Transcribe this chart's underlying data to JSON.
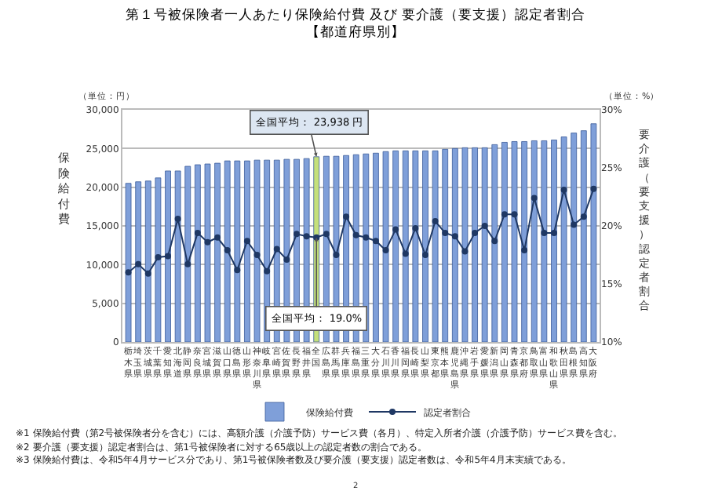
{
  "chart_data": {
    "type": "bar",
    "title": "第１号被保険者一人あたり保険給付費 及び 要介護（要支援）認定者割合",
    "subtitle": "【都道府県別】",
    "ylabel": "保険給付費",
    "y2label": "要介護（要支援）認定者割合",
    "categories": [
      "栃木県",
      "埼玉県",
      "茨城県",
      "千葉県",
      "愛知県",
      "北海道",
      "静岡県",
      "奈良県",
      "宮城県",
      "滋賀県",
      "山口県",
      "徳島県",
      "山形県",
      "神奈川県",
      "岐阜県",
      "宮崎県",
      "佐賀県",
      "長野県",
      "福井県",
      "全国",
      "広島県",
      "群馬県",
      "兵庫県",
      "福島県",
      "三重県",
      "大分県",
      "石川県",
      "香川県",
      "福岡県",
      "長崎県",
      "山梨県",
      "東京都",
      "熊本県",
      "鹿児島県",
      "沖縄県",
      "岩手県",
      "愛媛県",
      "新潟県",
      "岡山県",
      "青森県",
      "京都府",
      "鳥取県",
      "富山県",
      "和歌山県",
      "秋田県",
      "島根県",
      "高知県",
      "大阪府"
    ],
    "series": [
      {
        "name": "保険給付費",
        "colors": [
          "#7f9fd9",
          "#7f9fd9",
          "#7f9fd9",
          "#7f9fd9",
          "#7f9fd9",
          "#7f9fd9",
          "#7f9fd9",
          "#7f9fd9",
          "#7f9fd9",
          "#7f9fd9",
          "#7f9fd9",
          "#7f9fd9",
          "#7f9fd9",
          "#7f9fd9",
          "#7f9fd9",
          "#7f9fd9",
          "#7f9fd9",
          "#7f9fd9",
          "#7f9fd9",
          "#c5e07a",
          "#7f9fd9",
          "#7f9fd9",
          "#7f9fd9",
          "#7f9fd9",
          "#7f9fd9",
          "#7f9fd9",
          "#7f9fd9",
          "#7f9fd9",
          "#7f9fd9",
          "#7f9fd9",
          "#7f9fd9",
          "#7f9fd9",
          "#7f9fd9",
          "#7f9fd9",
          "#7f9fd9",
          "#7f9fd9",
          "#7f9fd9",
          "#7f9fd9",
          "#7f9fd9",
          "#7f9fd9",
          "#7f9fd9",
          "#7f9fd9",
          "#7f9fd9",
          "#7f9fd9",
          "#7f9fd9",
          "#7f9fd9",
          "#7f9fd9",
          "#7f9fd9"
        ],
        "values": [
          20500,
          20700,
          20800,
          21200,
          22100,
          22100,
          22700,
          22900,
          23000,
          23100,
          23400,
          23400,
          23400,
          23500,
          23500,
          23500,
          23600,
          23600,
          23700,
          23938,
          24000,
          24000,
          24100,
          24200,
          24300,
          24400,
          24600,
          24700,
          24700,
          24700,
          24700,
          24700,
          24900,
          25000,
          25100,
          25100,
          25100,
          25500,
          25800,
          25900,
          25900,
          26000,
          26000,
          26100,
          26500,
          27000,
          27300,
          28200
        ]
      },
      {
        "name": "認定者割合",
        "type": "line",
        "axis": "y2",
        "color": "#1f3864",
        "values": [
          16.0,
          16.7,
          15.9,
          17.3,
          17.4,
          20.6,
          16.7,
          19.4,
          18.6,
          19.0,
          17.9,
          16.2,
          18.7,
          17.5,
          16.1,
          18.0,
          17.1,
          19.3,
          19.1,
          19.0,
          19.3,
          17.5,
          20.8,
          19.2,
          19.0,
          18.7,
          17.9,
          19.7,
          17.6,
          19.8,
          17.5,
          20.4,
          19.4,
          19.1,
          17.8,
          19.4,
          20.0,
          18.7,
          21.0,
          21.0,
          17.9,
          22.4,
          19.4,
          19.4,
          23.1,
          20.1,
          20.8,
          23.2
        ]
      }
    ],
    "ylim": [
      0,
      30000
    ],
    "yticks": [
      {
        "value": 0,
        "label": "0"
      },
      {
        "value": 5000,
        "label": "5,000"
      },
      {
        "value": 10000,
        "label": "10,000"
      },
      {
        "value": 15000,
        "label": "15,000"
      },
      {
        "value": 20000,
        "label": "20,000"
      },
      {
        "value": 25000,
        "label": "25,000"
      },
      {
        "value": 30000,
        "label": "30,000"
      }
    ],
    "y2lim": [
      10,
      30
    ],
    "y2ticks": [
      {
        "value": 10,
        "label": "10%"
      },
      {
        "value": 15,
        "label": "15%"
      },
      {
        "value": 20,
        "label": "20%"
      },
      {
        "value": 25,
        "label": "25%"
      },
      {
        "value": 30,
        "label": "30%"
      }
    ],
    "grid": "y",
    "legend": "bottom",
    "marker": "circle",
    "annotations": [
      {
        "text": "全国平均： 23,938 円",
        "x": "全国",
        "y": 23938
      },
      {
        "text": "全国平均： 19.0%",
        "x": "全国",
        "y": 19.0
      },
      "（単位：円）",
      "（単位：%）",
      "※1 保険給付費（第2号被保険者分を含む）には、高額介護（介護予防）サービス費（各月）、特定入所者介護（介護予防）サービス費を含む。",
      "※2 要介護（要支援）認定者割合は、第1号被保険者に対する65歳以上の認定者数の割合である。",
      "※3 保険給付費は、令和5年4月サービス分であり、第1号被保険者数及び要介護（要支援）認定者数は、令和5年4月末実績である。",
      "2"
    ]
  }
}
